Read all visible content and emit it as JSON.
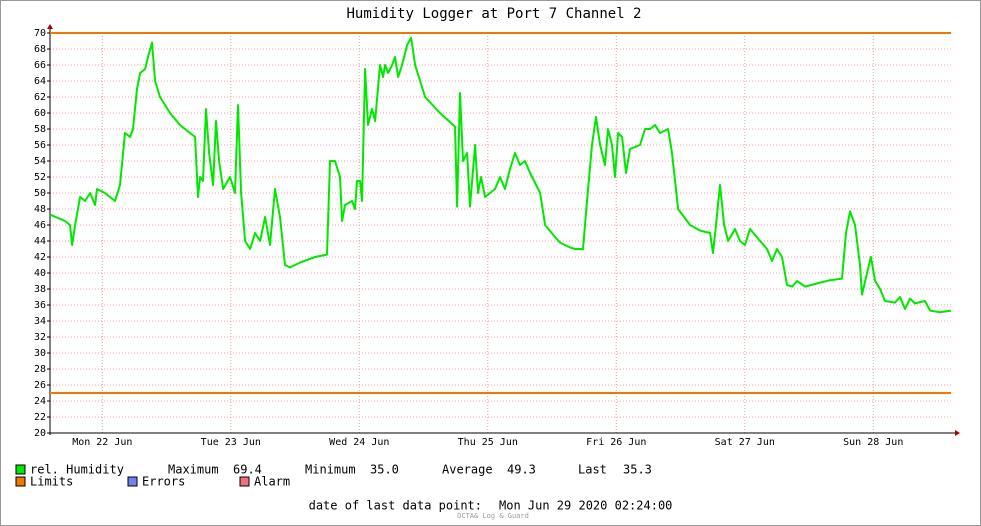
{
  "chart_data": {
    "type": "line",
    "title": "Humidity Logger at Port 7 Channel 2",
    "x": [
      0.093,
      0.21,
      0.249,
      0.265,
      0.288,
      0.327,
      0.366,
      0.405,
      0.444,
      0.459,
      0.521,
      0.56,
      0.599,
      0.638,
      0.677,
      0.716,
      0.739,
      0.77,
      0.794,
      0.833,
      0.856,
      0.887,
      0.911,
      0.949,
      1.027,
      1.105,
      1.222,
      1.245,
      1.261,
      1.284,
      1.307,
      1.331,
      1.362,
      1.385,
      1.409,
      1.44,
      1.494,
      1.533,
      1.556,
      1.58,
      1.611,
      1.65,
      1.689,
      1.728,
      1.767,
      1.805,
      1.844,
      1.883,
      1.922,
      1.961,
      2.039,
      2.156,
      2.249,
      2.272,
      2.311,
      2.35,
      2.366,
      2.389,
      2.444,
      2.467,
      2.482,
      2.506,
      2.521,
      2.545,
      2.568,
      2.599,
      2.623,
      2.661,
      2.685,
      2.7,
      2.724,
      2.755,
      2.778,
      2.802,
      2.833,
      2.872,
      2.903,
      2.934,
      3.012,
      3.128,
      3.245,
      3.261,
      3.284,
      3.307,
      3.339,
      3.362,
      3.401,
      3.424,
      3.447,
      3.479,
      3.556,
      3.595,
      3.634,
      3.673,
      3.712,
      3.751,
      3.79,
      3.829,
      3.907,
      3.946,
      4.023,
      4.062,
      4.14,
      4.179,
      4.241,
      4.272,
      4.311,
      4.342,
      4.374,
      4.412,
      4.436,
      4.467,
      4.49,
      4.514,
      4.545,
      4.576,
      4.607,
      4.685,
      4.724,
      4.763,
      4.802,
      4.84,
      4.903,
      4.934,
      4.981,
      5.074,
      5.152,
      5.23,
      5.253,
      5.276,
      5.307,
      5.339,
      5.37,
      5.424,
      5.463,
      5.502,
      5.541,
      5.619,
      5.673,
      5.712,
      5.751,
      5.79,
      5.829,
      5.868,
      5.907,
      5.969,
      6.086,
      6.163,
      6.257,
      6.288,
      6.319,
      6.358,
      6.397,
      6.412,
      6.459,
      6.482,
      6.514,
      6.553,
      6.591,
      6.669,
      6.708,
      6.747,
      6.786,
      6.825,
      6.903,
      6.942,
      7.019,
      7.105
    ],
    "series": [
      {
        "name": "rel. Humidity",
        "color": "#00e800",
        "values": [
          47.3,
          46.5,
          46,
          43.5,
          46,
          49.5,
          49,
          50,
          48.5,
          50.5,
          50,
          49.5,
          49,
          51,
          57.5,
          57,
          58,
          63,
          65,
          65.5,
          67,
          68.8,
          64,
          62,
          60,
          58.5,
          57,
          49.5,
          52,
          51.5,
          60.5,
          55,
          51,
          59,
          54,
          50.5,
          52,
          50,
          61,
          50,
          44,
          43,
          45,
          44,
          47,
          43.5,
          50.5,
          47,
          41,
          40.7,
          41.3,
          42,
          42.3,
          54,
          54,
          52,
          46.5,
          48.5,
          49,
          48,
          51.5,
          51.5,
          49,
          65.5,
          58.5,
          60.5,
          59,
          66,
          64.5,
          66,
          65,
          66,
          67,
          64.5,
          66,
          68.5,
          69.4,
          66,
          62,
          60,
          58.3,
          48.3,
          62.5,
          54,
          55,
          48.3,
          56,
          50,
          52,
          49.5,
          50.5,
          52,
          50.5,
          53,
          55,
          53.5,
          54,
          52.5,
          50,
          46,
          44.5,
          43.8,
          43.2,
          43,
          43,
          49,
          56,
          59.5,
          56,
          53.5,
          58,
          56,
          52,
          57.5,
          57,
          52.5,
          55.5,
          56,
          58,
          58,
          58.5,
          57.5,
          58,
          55,
          48,
          46,
          45.3,
          45,
          42.5,
          46,
          51,
          46,
          44,
          45.5,
          44,
          43.5,
          45.5,
          44,
          43,
          41.5,
          43,
          42,
          38.5,
          38.3,
          39,
          38.3,
          38.8,
          39.1,
          39.3,
          45,
          47.7,
          46,
          41,
          37.3,
          40.5,
          42,
          39,
          38,
          36.5,
          36.3,
          37,
          35.5,
          36.8,
          36.2,
          36.5,
          35.3,
          35.1,
          35.3
        ]
      }
    ],
    "limits": {
      "name": "Limits",
      "color": "#f07800",
      "values": [
        70,
        25
      ]
    },
    "legend": [
      {
        "name": "Errors",
        "color": "#7080f0"
      },
      {
        "name": "Alarm",
        "color": "#f07080"
      }
    ],
    "stats": [
      {
        "label": "Maximum",
        "value": "69.4"
      },
      {
        "label": "Minimum",
        "value": "35.0"
      },
      {
        "label": "Average",
        "value": "49.3"
      },
      {
        "label": "Last",
        "value": "35.3"
      }
    ],
    "xlim": [
      0.093,
      7.105
    ],
    "xticks": [
      {
        "value": 0.5,
        "label": "Mon 22 Jun"
      },
      {
        "value": 1.5,
        "label": "Tue 23 Jun"
      },
      {
        "value": 2.5,
        "label": "Wed 24 Jun"
      },
      {
        "value": 3.5,
        "label": "Thu 25 Jun"
      },
      {
        "value": 4.5,
        "label": "Fri 26 Jun"
      },
      {
        "value": 5.5,
        "label": "Sat 27 Jun"
      },
      {
        "value": 6.5,
        "label": "Sun 28 Jun"
      }
    ],
    "ylim": [
      20,
      70
    ],
    "yticks": [
      20,
      22,
      24,
      26,
      28,
      30,
      32,
      34,
      36,
      38,
      40,
      42,
      44,
      46,
      48,
      50,
      52,
      54,
      56,
      58,
      60,
      62,
      64,
      66,
      68,
      70
    ],
    "grid": true,
    "footer": {
      "label": "date of last data point:",
      "value": "Mon Jun 29 2020 02:24:00"
    },
    "watermark": "OCTA& Log & Guard"
  }
}
